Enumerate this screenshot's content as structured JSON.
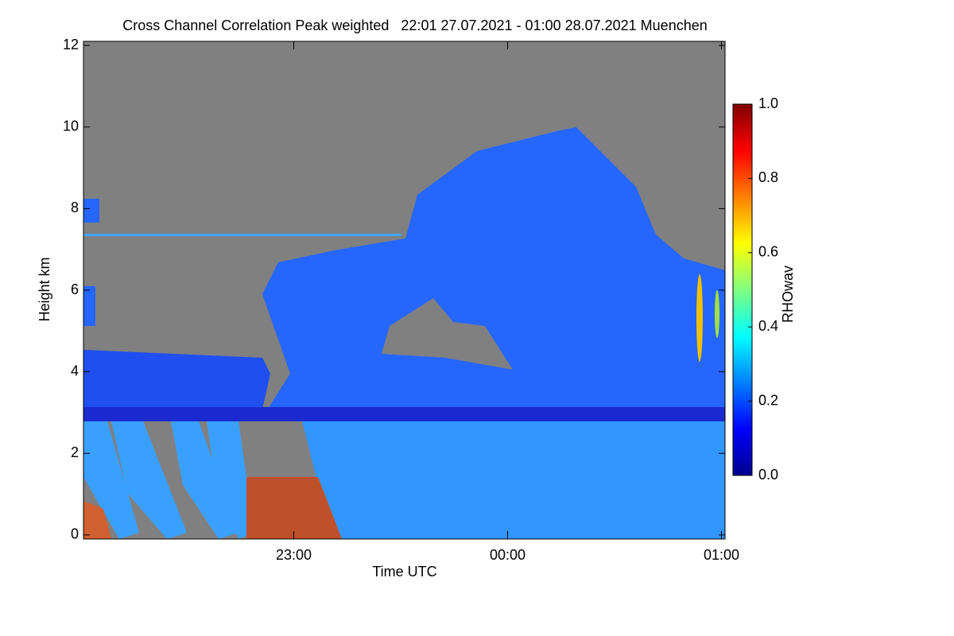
{
  "chart_data": {
    "type": "heatmap",
    "title": "Cross Channel Correlation Peak weighted   22:01 27.07.2021 - 01:00 28.07.2021 Muenchen",
    "x_label": "Time UTC",
    "y_label": "Height km",
    "xlim": [
      1,
      181
    ],
    "xticks": [
      {
        "value": 60,
        "label": "23:00"
      },
      {
        "value": 120,
        "label": "00:00"
      },
      {
        "value": 180,
        "label": "01:00"
      }
    ],
    "ylim": [
      -0.1,
      12.1
    ],
    "yticks": [
      0,
      2,
      4,
      6,
      8,
      10,
      12
    ],
    "colorbar": {
      "label": "RHOwav",
      "lim": [
        0,
        1
      ],
      "ticks": [
        {
          "value": 0,
          "label": "0.0"
        },
        {
          "value": 0.2,
          "label": "0.2"
        },
        {
          "value": 0.4,
          "label": "0.4"
        },
        {
          "value": 0.6,
          "label": "0.6"
        },
        {
          "value": 0.8,
          "label": "0.8"
        },
        {
          "value": 1,
          "label": "1.0"
        }
      ]
    }
  }
}
